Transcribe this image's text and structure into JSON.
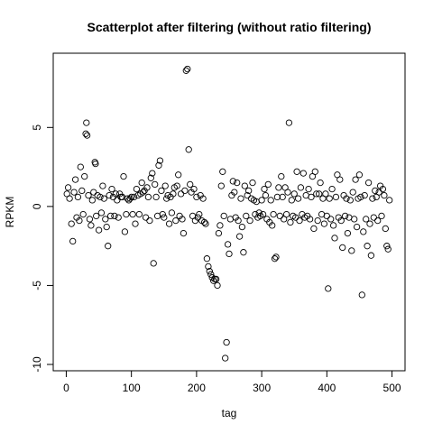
{
  "chart_data": {
    "type": "scatter",
    "title": "Scatterplot after filtering (without ratio filtering)",
    "xlabel": "tag",
    "ylabel": "RPKM",
    "xlim": [
      -20,
      520
    ],
    "ylim": [
      -10.4,
      9.7
    ],
    "xticks": [
      0,
      100,
      200,
      300,
      400,
      500
    ],
    "xtick_labels": [
      "0",
      "100",
      "200",
      "300",
      "400",
      "500"
    ],
    "yticks": [
      -10,
      -5,
      0,
      5
    ],
    "ytick_labels": [
      "-10",
      "-5",
      "0",
      "5"
    ],
    "grid": false,
    "legend": "none",
    "marker": "open-circle",
    "points": [
      [
        1,
        0.8
      ],
      [
        3,
        1.2
      ],
      [
        5,
        0.5
      ],
      [
        8,
        -1.1
      ],
      [
        10,
        -2.2
      ],
      [
        12,
        0.9
      ],
      [
        14,
        1.7
      ],
      [
        16,
        -0.7
      ],
      [
        18,
        0.6
      ],
      [
        20,
        -0.9
      ],
      [
        22,
        2.5
      ],
      [
        24,
        1.0
      ],
      [
        26,
        -0.5
      ],
      [
        28,
        1.9
      ],
      [
        30,
        4.6
      ],
      [
        31,
        5.3
      ],
      [
        32,
        4.5
      ],
      [
        34,
        0.7
      ],
      [
        36,
        -0.8
      ],
      [
        38,
        -1.2
      ],
      [
        40,
        0.4
      ],
      [
        42,
        0.9
      ],
      [
        44,
        2.8
      ],
      [
        45,
        2.7
      ],
      [
        46,
        -0.6
      ],
      [
        48,
        0.7
      ],
      [
        50,
        -1.5
      ],
      [
        52,
        0.6
      ],
      [
        54,
        -0.4
      ],
      [
        56,
        1.3
      ],
      [
        58,
        0.5
      ],
      [
        60,
        -0.8
      ],
      [
        62,
        -1.3
      ],
      [
        64,
        -2.5
      ],
      [
        66,
        0.7
      ],
      [
        68,
        -0.6
      ],
      [
        70,
        1.1
      ],
      [
        72,
        0.6
      ],
      [
        74,
        -0.6
      ],
      [
        76,
        0.8
      ],
      [
        78,
        0.4
      ],
      [
        80,
        -0.7
      ],
      [
        82,
        0.8
      ],
      [
        84,
        0.6
      ],
      [
        86,
        0.6
      ],
      [
        88,
        1.9
      ],
      [
        90,
        -1.6
      ],
      [
        92,
        -0.5
      ],
      [
        94,
        0.5
      ],
      [
        96,
        0.4
      ],
      [
        98,
        0.5
      ],
      [
        100,
        0.6
      ],
      [
        102,
        -0.5
      ],
      [
        104,
        0.6
      ],
      [
        106,
        -1.1
      ],
      [
        108,
        1.1
      ],
      [
        110,
        0.7
      ],
      [
        112,
        -0.5
      ],
      [
        114,
        0.8
      ],
      [
        116,
        1.5
      ],
      [
        118,
        0.9
      ],
      [
        120,
        1.0
      ],
      [
        122,
        -0.7
      ],
      [
        124,
        1.2
      ],
      [
        126,
        0.6
      ],
      [
        128,
        -0.9
      ],
      [
        130,
        1.8
      ],
      [
        132,
        2.1
      ],
      [
        134,
        -3.6
      ],
      [
        136,
        1.4
      ],
      [
        138,
        0.6
      ],
      [
        140,
        -0.6
      ],
      [
        142,
        2.6
      ],
      [
        144,
        2.9
      ],
      [
        146,
        1.0
      ],
      [
        148,
        -0.5
      ],
      [
        150,
        -0.7
      ],
      [
        152,
        1.3
      ],
      [
        154,
        0.5
      ],
      [
        156,
        0.7
      ],
      [
        158,
        -1.1
      ],
      [
        160,
        0.6
      ],
      [
        162,
        -0.4
      ],
      [
        164,
        0.8
      ],
      [
        166,
        1.2
      ],
      [
        168,
        -0.9
      ],
      [
        170,
        1.3
      ],
      [
        172,
        2.0
      ],
      [
        174,
        -0.6
      ],
      [
        176,
        0.8
      ],
      [
        178,
        -0.8
      ],
      [
        180,
        -1.7
      ],
      [
        182,
        1.0
      ],
      [
        184,
        8.6
      ],
      [
        186,
        8.7
      ],
      [
        188,
        3.6
      ],
      [
        190,
        1.4
      ],
      [
        192,
        0.9
      ],
      [
        194,
        -0.6
      ],
      [
        196,
        1.1
      ],
      [
        198,
        -0.9
      ],
      [
        200,
        0.6
      ],
      [
        202,
        -0.7
      ],
      [
        204,
        -0.5
      ],
      [
        206,
        0.7
      ],
      [
        208,
        -0.9
      ],
      [
        210,
        0.5
      ],
      [
        212,
        -1.0
      ],
      [
        214,
        -1.1
      ],
      [
        216,
        -3.3
      ],
      [
        218,
        -3.8
      ],
      [
        220,
        -4.1
      ],
      [
        222,
        -4.3
      ],
      [
        224,
        -4.5
      ],
      [
        226,
        -4.7
      ],
      [
        228,
        -4.6
      ],
      [
        230,
        -4.6
      ],
      [
        232,
        -5.0
      ],
      [
        234,
        -1.7
      ],
      [
        236,
        -1.2
      ],
      [
        238,
        1.3
      ],
      [
        240,
        2.2
      ],
      [
        242,
        -0.6
      ],
      [
        244,
        -9.6
      ],
      [
        246,
        -8.6
      ],
      [
        248,
        -2.4
      ],
      [
        250,
        -3.0
      ],
      [
        252,
        -0.8
      ],
      [
        254,
        0.7
      ],
      [
        256,
        1.6
      ],
      [
        258,
        0.9
      ],
      [
        260,
        -0.7
      ],
      [
        262,
        1.5
      ],
      [
        264,
        -0.9
      ],
      [
        266,
        -1.9
      ],
      [
        268,
        0.5
      ],
      [
        270,
        -1.3
      ],
      [
        272,
        -2.9
      ],
      [
        274,
        1.3
      ],
      [
        276,
        -0.6
      ],
      [
        278,
        0.7
      ],
      [
        280,
        1.0
      ],
      [
        282,
        -0.9
      ],
      [
        284,
        0.5
      ],
      [
        286,
        1.5
      ],
      [
        288,
        0.4
      ],
      [
        290,
        -0.5
      ],
      [
        292,
        0.3
      ],
      [
        294,
        -0.7
      ],
      [
        296,
        -0.4
      ],
      [
        298,
        -0.6
      ],
      [
        300,
        0.4
      ],
      [
        302,
        -0.5
      ],
      [
        304,
        1.1
      ],
      [
        306,
        0.7
      ],
      [
        308,
        -0.8
      ],
      [
        310,
        1.4
      ],
      [
        312,
        -1.0
      ],
      [
        314,
        0.4
      ],
      [
        316,
        -1.2
      ],
      [
        318,
        -0.5
      ],
      [
        320,
        -3.3
      ],
      [
        322,
        -3.2
      ],
      [
        324,
        0.6
      ],
      [
        326,
        1.2
      ],
      [
        328,
        -0.6
      ],
      [
        330,
        1.9
      ],
      [
        332,
        0.6
      ],
      [
        334,
        -0.8
      ],
      [
        336,
        1.2
      ],
      [
        338,
        -0.5
      ],
      [
        340,
        0.9
      ],
      [
        342,
        5.3
      ],
      [
        344,
        -1.0
      ],
      [
        346,
        0.4
      ],
      [
        348,
        -0.6
      ],
      [
        350,
        0.8
      ],
      [
        352,
        -0.7
      ],
      [
        354,
        2.2
      ],
      [
        356,
        0.5
      ],
      [
        358,
        -0.9
      ],
      [
        360,
        1.2
      ],
      [
        362,
        -0.5
      ],
      [
        364,
        2.1
      ],
      [
        366,
        -0.7
      ],
      [
        368,
        0.7
      ],
      [
        370,
        -0.6
      ],
      [
        372,
        1.1
      ],
      [
        374,
        -0.8
      ],
      [
        376,
        0.6
      ],
      [
        378,
        1.9
      ],
      [
        380,
        -1.4
      ],
      [
        382,
        2.2
      ],
      [
        384,
        0.8
      ],
      [
        386,
        -0.9
      ],
      [
        388,
        0.8
      ],
      [
        390,
        1.5
      ],
      [
        392,
        -0.5
      ],
      [
        394,
        0.5
      ],
      [
        396,
        -1.1
      ],
      [
        398,
        0.8
      ],
      [
        400,
        -0.6
      ],
      [
        402,
        -5.2
      ],
      [
        404,
        0.5
      ],
      [
        406,
        -0.8
      ],
      [
        408,
        1.1
      ],
      [
        410,
        -1.2
      ],
      [
        412,
        -2.0
      ],
      [
        414,
        0.6
      ],
      [
        416,
        2.0
      ],
      [
        418,
        -0.7
      ],
      [
        420,
        1.7
      ],
      [
        422,
        -0.9
      ],
      [
        424,
        -2.6
      ],
      [
        426,
        0.7
      ],
      [
        428,
        -0.6
      ],
      [
        430,
        0.5
      ],
      [
        432,
        -1.7
      ],
      [
        434,
        -0.7
      ],
      [
        436,
        0.4
      ],
      [
        438,
        -2.8
      ],
      [
        440,
        0.9
      ],
      [
        442,
        -0.8
      ],
      [
        444,
        1.7
      ],
      [
        446,
        -1.3
      ],
      [
        448,
        0.5
      ],
      [
        450,
        2.0
      ],
      [
        452,
        0.6
      ],
      [
        454,
        -5.6
      ],
      [
        456,
        -1.6
      ],
      [
        458,
        0.7
      ],
      [
        460,
        -0.8
      ],
      [
        462,
        -2.5
      ],
      [
        464,
        1.5
      ],
      [
        466,
        -1.1
      ],
      [
        468,
        -3.1
      ],
      [
        470,
        0.5
      ],
      [
        472,
        -0.7
      ],
      [
        474,
        1.0
      ],
      [
        476,
        0.6
      ],
      [
        478,
        -0.9
      ],
      [
        480,
        0.9
      ],
      [
        482,
        1.3
      ],
      [
        484,
        -0.6
      ],
      [
        486,
        1.1
      ],
      [
        488,
        0.7
      ],
      [
        490,
        -1.4
      ],
      [
        492,
        -2.5
      ],
      [
        494,
        -2.7
      ],
      [
        496,
        0.4
      ]
    ]
  }
}
